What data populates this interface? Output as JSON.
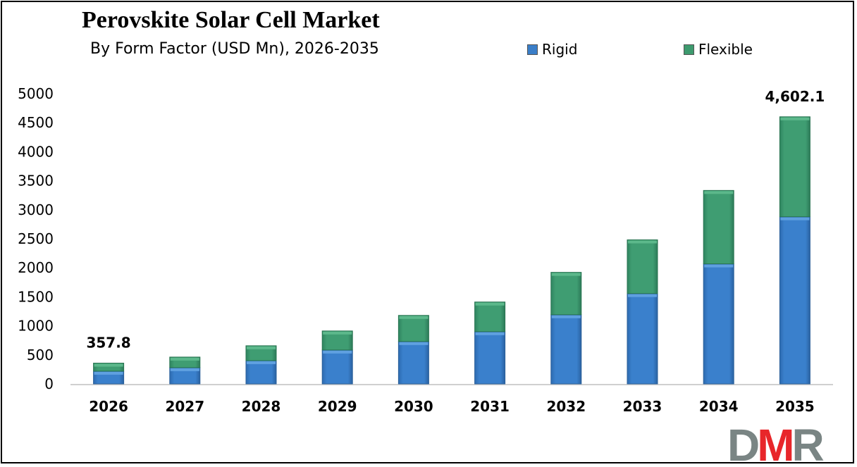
{
  "chart_data": {
    "type": "bar",
    "stacked": true,
    "title": "Perovskite Solar Cell Market",
    "subtitle": "By Form Factor (USD Mn), 2026-2035",
    "categories": [
      "2026",
      "2027",
      "2028",
      "2029",
      "2030",
      "2031",
      "2032",
      "2033",
      "2034",
      "2035"
    ],
    "series": [
      {
        "name": "Rigid",
        "color": "#3a7ec8",
        "values": [
          219,
          280,
          401,
          584,
          730,
          900,
          1192,
          1557,
          2068,
          2880
        ]
      },
      {
        "name": "Flexible",
        "color": "#3d9a6e",
        "values": [
          138.8,
          182,
          256,
          328,
          450,
          511,
          730,
          925,
          1265,
          1722.1
        ]
      }
    ],
    "data_labels": [
      {
        "category": "2026",
        "text": "357.8"
      },
      {
        "category": "2035",
        "text": "4,602.1"
      }
    ],
    "yticks": [
      "0",
      "500",
      "1000",
      "1500",
      "2000",
      "2500",
      "3000",
      "3500",
      "4000",
      "4500",
      "5000"
    ],
    "ylim": [
      0,
      5000
    ],
    "grid": false,
    "legend_position": "top"
  },
  "logo": {
    "text": "DMR",
    "colors": [
      "#7a8584",
      "#e8262a",
      "#7a8584"
    ]
  }
}
